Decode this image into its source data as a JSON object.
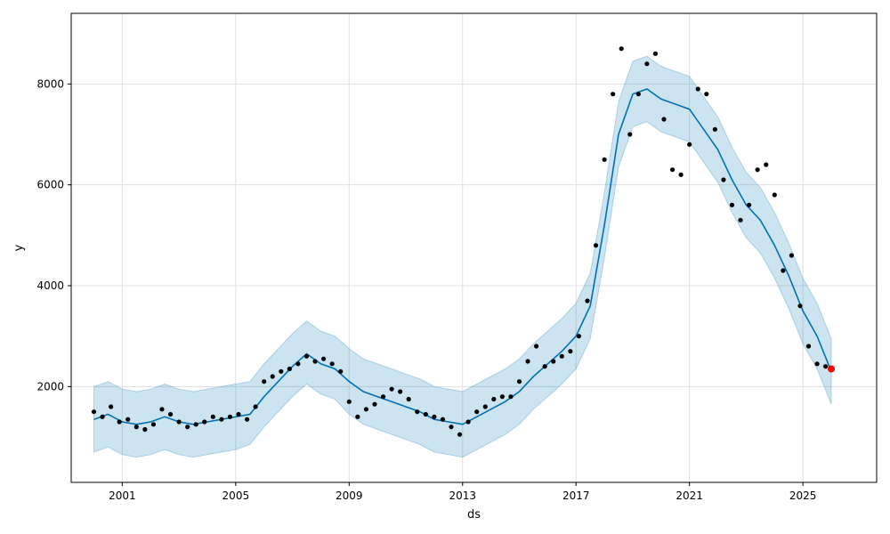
{
  "chart_data": {
    "type": "scatter",
    "title": "",
    "xlabel": "ds",
    "ylabel": "y",
    "xlim": [
      1999.2,
      2027.6
    ],
    "ylim": [
      100,
      9400
    ],
    "grid": true,
    "legend": "none",
    "x_ticks": [
      {
        "value": 2001,
        "label": "2001"
      },
      {
        "value": 2005,
        "label": "2005"
      },
      {
        "value": 2009,
        "label": "2009"
      },
      {
        "value": 2013,
        "label": "2013"
      },
      {
        "value": 2017,
        "label": "2017"
      },
      {
        "value": 2021,
        "label": "2021"
      },
      {
        "value": 2025,
        "label": "2025"
      }
    ],
    "y_ticks": [
      {
        "value": 2000,
        "label": "2000"
      },
      {
        "value": 4000,
        "label": "4000"
      },
      {
        "value": 6000,
        "label": "6000"
      },
      {
        "value": 8000,
        "label": "8000"
      }
    ],
    "colors": {
      "observed": "#000000",
      "forecast_line": "#0072b2",
      "uncertainty_band": "#0072b2",
      "highlight": "#ff0000",
      "grid": "#e0e0e0"
    },
    "observed": {
      "x": [
        2000.0,
        2000.3,
        2000.6,
        2000.9,
        2001.2,
        2001.5,
        2001.8,
        2002.1,
        2002.4,
        2002.7,
        2003.0,
        2003.3,
        2003.6,
        2003.9,
        2004.2,
        2004.5,
        2004.8,
        2005.1,
        2005.4,
        2005.7,
        2006.0,
        2006.3,
        2006.6,
        2006.9,
        2007.2,
        2007.5,
        2007.8,
        2008.1,
        2008.4,
        2008.7,
        2009.0,
        2009.3,
        2009.6,
        2009.9,
        2010.2,
        2010.5,
        2010.8,
        2011.1,
        2011.4,
        2011.7,
        2012.0,
        2012.3,
        2012.6,
        2012.9,
        2013.2,
        2013.5,
        2013.8,
        2014.1,
        2014.4,
        2014.7,
        2015.0,
        2015.3,
        2015.6,
        2015.9,
        2016.2,
        2016.5,
        2016.8,
        2017.1,
        2017.4,
        2017.7,
        2018.0,
        2018.3,
        2018.6,
        2018.9,
        2019.2,
        2019.5,
        2019.8,
        2020.1,
        2020.4,
        2020.7,
        2021.0,
        2021.3,
        2021.6,
        2021.9,
        2022.2,
        2022.5,
        2022.8,
        2023.1,
        2023.4,
        2023.7,
        2024.0,
        2024.3,
        2024.6,
        2024.9,
        2025.2,
        2025.5,
        2025.8
      ],
      "y": [
        1500,
        1400,
        1600,
        1300,
        1350,
        1200,
        1150,
        1250,
        1550,
        1450,
        1300,
        1200,
        1250,
        1300,
        1400,
        1350,
        1400,
        1450,
        1350,
        1600,
        2100,
        2200,
        2300,
        2350,
        2450,
        2600,
        2500,
        2550,
        2450,
        2300,
        1700,
        1400,
        1550,
        1650,
        1800,
        1950,
        1900,
        1750,
        1500,
        1450,
        1400,
        1350,
        1200,
        1050,
        1300,
        1500,
        1600,
        1750,
        1800,
        1800,
        2100,
        2500,
        2800,
        2400,
        2500,
        2600,
        2700,
        3000,
        3700,
        4800,
        6500,
        7800,
        8700,
        7000,
        7800,
        8400,
        8600,
        7300,
        6300,
        6200,
        6800,
        7900,
        7800,
        7100,
        6100,
        5600,
        5300,
        5600,
        6300,
        6400,
        5800,
        4300,
        4600,
        3600,
        2800,
        2450,
        2400
      ]
    },
    "highlight": {
      "x": [
        2026.0
      ],
      "y": [
        2350
      ]
    },
    "forecast": {
      "x": [
        2000.0,
        2000.5,
        2001.0,
        2001.5,
        2002.0,
        2002.5,
        2003.0,
        2003.5,
        2004.0,
        2004.5,
        2005.0,
        2005.5,
        2006.0,
        2006.5,
        2007.0,
        2007.5,
        2008.0,
        2008.5,
        2009.0,
        2009.5,
        2010.0,
        2010.5,
        2011.0,
        2011.5,
        2012.0,
        2012.5,
        2013.0,
        2013.5,
        2014.0,
        2014.5,
        2015.0,
        2015.5,
        2016.0,
        2016.5,
        2017.0,
        2017.5,
        2018.0,
        2018.5,
        2019.0,
        2019.5,
        2020.0,
        2020.5,
        2021.0,
        2021.5,
        2022.0,
        2022.5,
        2023.0,
        2023.5,
        2024.0,
        2024.5,
        2025.0,
        2025.5,
        2026.0
      ],
      "y": [
        1350,
        1450,
        1300,
        1250,
        1300,
        1400,
        1300,
        1250,
        1300,
        1350,
        1400,
        1450,
        1800,
        2100,
        2400,
        2650,
        2450,
        2350,
        2100,
        1900,
        1800,
        1700,
        1600,
        1500,
        1350,
        1300,
        1250,
        1400,
        1550,
        1700,
        1900,
        2200,
        2450,
        2700,
        3000,
        3600,
        5200,
        7000,
        7800,
        7900,
        7700,
        7600,
        7500,
        7100,
        6700,
        6100,
        5600,
        5300,
        4800,
        4200,
        3500,
        3000,
        2300
      ],
      "lower": [
        700,
        800,
        650,
        600,
        650,
        750,
        650,
        600,
        650,
        700,
        750,
        850,
        1200,
        1500,
        1800,
        2050,
        1850,
        1750,
        1450,
        1250,
        1150,
        1050,
        950,
        850,
        700,
        650,
        600,
        750,
        900,
        1050,
        1250,
        1550,
        1800,
        2050,
        2350,
        2950,
        4550,
        6350,
        7150,
        7250,
        7050,
        6950,
        6850,
        6450,
        6050,
        5450,
        4950,
        4650,
        4150,
        3550,
        2850,
        2350,
        1650
      ],
      "upper": [
        2000,
        2100,
        1950,
        1900,
        1950,
        2050,
        1950,
        1900,
        1950,
        2000,
        2050,
        2100,
        2450,
        2750,
        3050,
        3300,
        3100,
        3000,
        2750,
        2550,
        2450,
        2350,
        2250,
        2150,
        2000,
        1950,
        1900,
        2050,
        2200,
        2350,
        2550,
        2850,
        3100,
        3350,
        3650,
        4250,
        5850,
        7650,
        8450,
        8550,
        8350,
        8250,
        8150,
        7750,
        7350,
        6750,
        6250,
        5950,
        5450,
        4850,
        4150,
        3650,
        2950
      ]
    }
  }
}
